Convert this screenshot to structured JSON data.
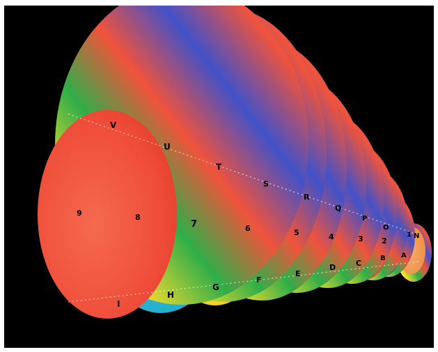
{
  "image": {
    "background_color": "#000000",
    "frame_color": "#ffffff"
  },
  "disc_labels": {
    "front_row": [
      "9",
      "8",
      "7",
      "6",
      "5",
      "4",
      "3",
      "2",
      "1"
    ],
    "top_row": [
      "V",
      "U",
      "T",
      "S",
      "R",
      "Q",
      "P",
      "O",
      "N"
    ],
    "bottom_row": [
      "I",
      "H",
      "G",
      "F",
      "E",
      "D",
      "C",
      "B",
      "A"
    ]
  },
  "colors": {
    "red": "#f0533b",
    "cyan": "#27b9d4",
    "yellow": "#f7dc2e",
    "green": "#2fae48",
    "blue": "#4252c8",
    "orange": "#f49b55",
    "white": "#ffffff"
  }
}
